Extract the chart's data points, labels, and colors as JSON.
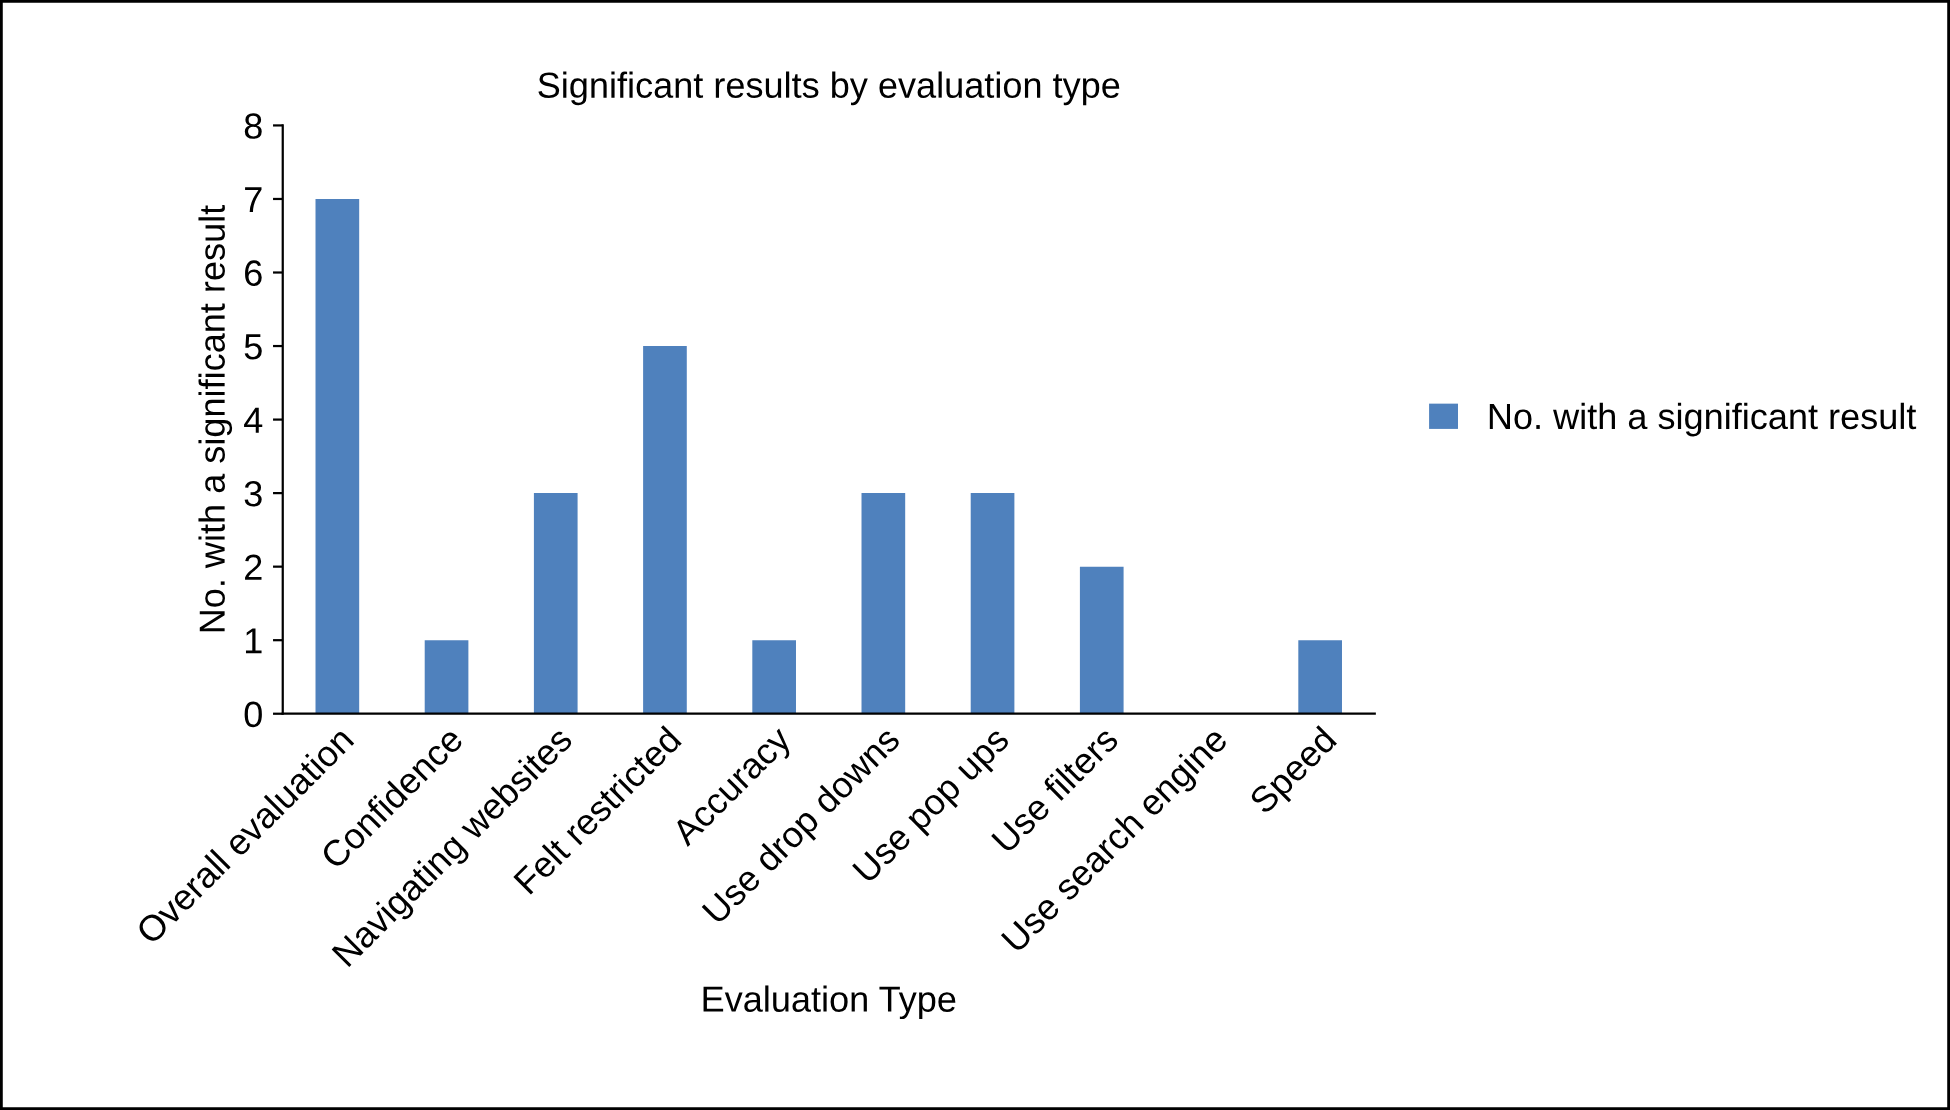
{
  "chart_data": {
    "type": "bar",
    "title": "Significant results by evaluation type",
    "xlabel": "Evaluation Type",
    "ylabel": "No. with a significant result",
    "categories": [
      "Overall evaluation",
      "Confidence",
      "Navigating websites",
      "Felt restricted",
      "Accuracy",
      "Use drop downs",
      "Use pop ups",
      "Use filters",
      "Use search engine",
      "Speed"
    ],
    "series": [
      {
        "name": "No. with a significant result",
        "color": "#4f81bd",
        "values": [
          7,
          1,
          3,
          5,
          1,
          3,
          3,
          2,
          0,
          1
        ]
      }
    ],
    "ylim": [
      0,
      8
    ],
    "yticks": [
      0,
      1,
      2,
      3,
      4,
      5,
      6,
      7,
      8
    ],
    "grid": false,
    "legend": "right"
  }
}
